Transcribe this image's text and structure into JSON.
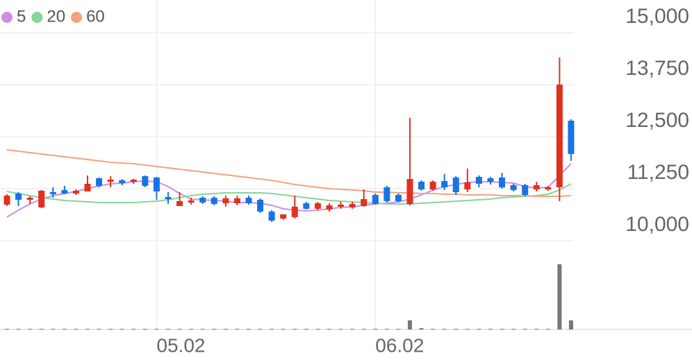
{
  "chart_data": {
    "type": "candlestick",
    "categories": [
      null,
      null,
      null,
      null,
      null,
      null,
      null,
      null,
      null,
      null,
      null,
      null,
      null,
      "05.02",
      null,
      null,
      null,
      null,
      null,
      null,
      null,
      null,
      null,
      null,
      null,
      null,
      null,
      null,
      null,
      null,
      null,
      null,
      "06.02",
      null,
      null,
      null,
      null,
      null,
      null,
      null,
      null,
      null,
      null,
      null,
      null,
      null,
      null,
      null,
      null,
      null
    ],
    "open": [
      10867,
      11133,
      10983,
      10800,
      11167,
      11217,
      11133,
      11183,
      11500,
      11417,
      11450,
      11417,
      11550,
      11517,
      11050,
      10833,
      10917,
      11033,
      11033,
      10900,
      10900,
      11033,
      10983,
      10700,
      10533,
      10567,
      10900,
      10767,
      10750,
      10817,
      10800,
      10833,
      11100,
      11283,
      11100,
      10883,
      11417,
      11233,
      11433,
      11517,
      11233,
      11533,
      11500,
      11517,
      11333,
      11333,
      11233,
      11233,
      11283,
      12883
    ],
    "high": [
      11117,
      11167,
      11067,
      11217,
      11283,
      11317,
      11233,
      11567,
      11517,
      11550,
      11483,
      11483,
      11567,
      11533,
      11167,
      11167,
      11033,
      11067,
      11067,
      11083,
      11083,
      11083,
      11017,
      10733,
      10583,
      11083,
      10933,
      10933,
      10900,
      10933,
      10933,
      11233,
      11133,
      11317,
      11133,
      12950,
      11450,
      11450,
      11600,
      11550,
      11733,
      11567,
      11533,
      11633,
      11367,
      11367,
      11417,
      11317,
      14400,
      12917
    ],
    "low": [
      10833,
      10833,
      10883,
      10783,
      11033,
      11117,
      11100,
      11183,
      11283,
      11283,
      11333,
      11367,
      11283,
      10983,
      10883,
      10833,
      10867,
      10883,
      10850,
      10817,
      10850,
      10867,
      10667,
      10450,
      10500,
      10533,
      10750,
      10733,
      10700,
      10767,
      10767,
      10817,
      10867,
      10917,
      10917,
      10850,
      11200,
      11200,
      11217,
      11100,
      11167,
      11283,
      11350,
      11250,
      11183,
      11067,
      11183,
      11200,
      10950,
      11917
    ],
    "close": [
      11083,
      10983,
      11033,
      11200,
      11117,
      11133,
      11200,
      11367,
      11317,
      11467,
      11383,
      11467,
      11317,
      11183,
      11000,
      10950,
      10967,
      10917,
      10883,
      11017,
      11017,
      10900,
      10700,
      10483,
      10633,
      10817,
      10767,
      10900,
      10850,
      10867,
      10883,
      11000,
      10883,
      10950,
      10950,
      11483,
      11233,
      11417,
      11283,
      11167,
      11400,
      11367,
      11417,
      11283,
      11217,
      11100,
      11333,
      11283,
      13750,
      12083
    ],
    "up_color": "#e0301e",
    "down_color": "#1673e6",
    "series": [
      {
        "name": "5",
        "color": "#cf8de6",
        "values": [
          10567,
          10733,
          10883,
          11000,
          11083,
          11133,
          11183,
          11250,
          11317,
          11367,
          11383,
          11417,
          11433,
          11417,
          11300,
          11133,
          11000,
          10983,
          10967,
          10950,
          10917,
          10917,
          10900,
          10850,
          10767,
          10733,
          10717,
          10733,
          10767,
          10800,
          10817,
          10850,
          10883,
          10900,
          10933,
          11000,
          11100,
          11217,
          11300,
          11350,
          11400,
          11417,
          11417,
          11400,
          11383,
          11300,
          11267,
          11283,
          11567,
          11850
        ]
      },
      {
        "name": "20",
        "color": "#86d49a",
        "values": [
          11183,
          11133,
          11083,
          11033,
          11000,
          10967,
          10950,
          10933,
          10917,
          10917,
          10917,
          10917,
          10933,
          10950,
          10983,
          11033,
          11083,
          11117,
          11133,
          11150,
          11150,
          11150,
          11150,
          11133,
          11100,
          11067,
          11033,
          11000,
          10967,
          10950,
          10933,
          10917,
          10900,
          10883,
          10883,
          10883,
          10900,
          10917,
          10933,
          10950,
          10967,
          10983,
          11000,
          11033,
          11050,
          11067,
          11083,
          11117,
          11217,
          11367
        ]
      },
      {
        "name": "60",
        "color": "#f3a37e",
        "values": [
          12183,
          12150,
          12117,
          12083,
          12050,
          12017,
          11983,
          11950,
          11917,
          11883,
          11867,
          11850,
          11817,
          11783,
          11750,
          11717,
          11683,
          11650,
          11617,
          11583,
          11550,
          11517,
          11483,
          11450,
          11400,
          11350,
          11317,
          11283,
          11250,
          11233,
          11217,
          11200,
          11167,
          11167,
          11150,
          11150,
          11133,
          11133,
          11117,
          11117,
          11100,
          11100,
          11100,
          11083,
          11083,
          11083,
          11067,
          11067,
          11067,
          11083
        ]
      }
    ],
    "volume": [
      1,
      1,
      1,
      1,
      1,
      1,
      1,
      1,
      1,
      1,
      1,
      1,
      1,
      1,
      1,
      1,
      1,
      1,
      1,
      1,
      1,
      1,
      1,
      1,
      1,
      1,
      1,
      1,
      1,
      1,
      1,
      1,
      1,
      1,
      1,
      14,
      2,
      1,
      1,
      1,
      1,
      1,
      1,
      1,
      1,
      1,
      1,
      1,
      100,
      14
    ],
    "volume_color": "#777777",
    "volume_lim": [
      0,
      100
    ],
    "ylim": [
      10000,
      15600
    ],
    "yticks": [
      {
        "value": 10000,
        "label": "10,000"
      },
      {
        "value": 11250,
        "label": "11,250"
      },
      {
        "value": 12500,
        "label": "12,500"
      },
      {
        "value": 13750,
        "label": "13,750"
      },
      {
        "value": 15000,
        "label": "15,000"
      }
    ],
    "grid": true
  }
}
